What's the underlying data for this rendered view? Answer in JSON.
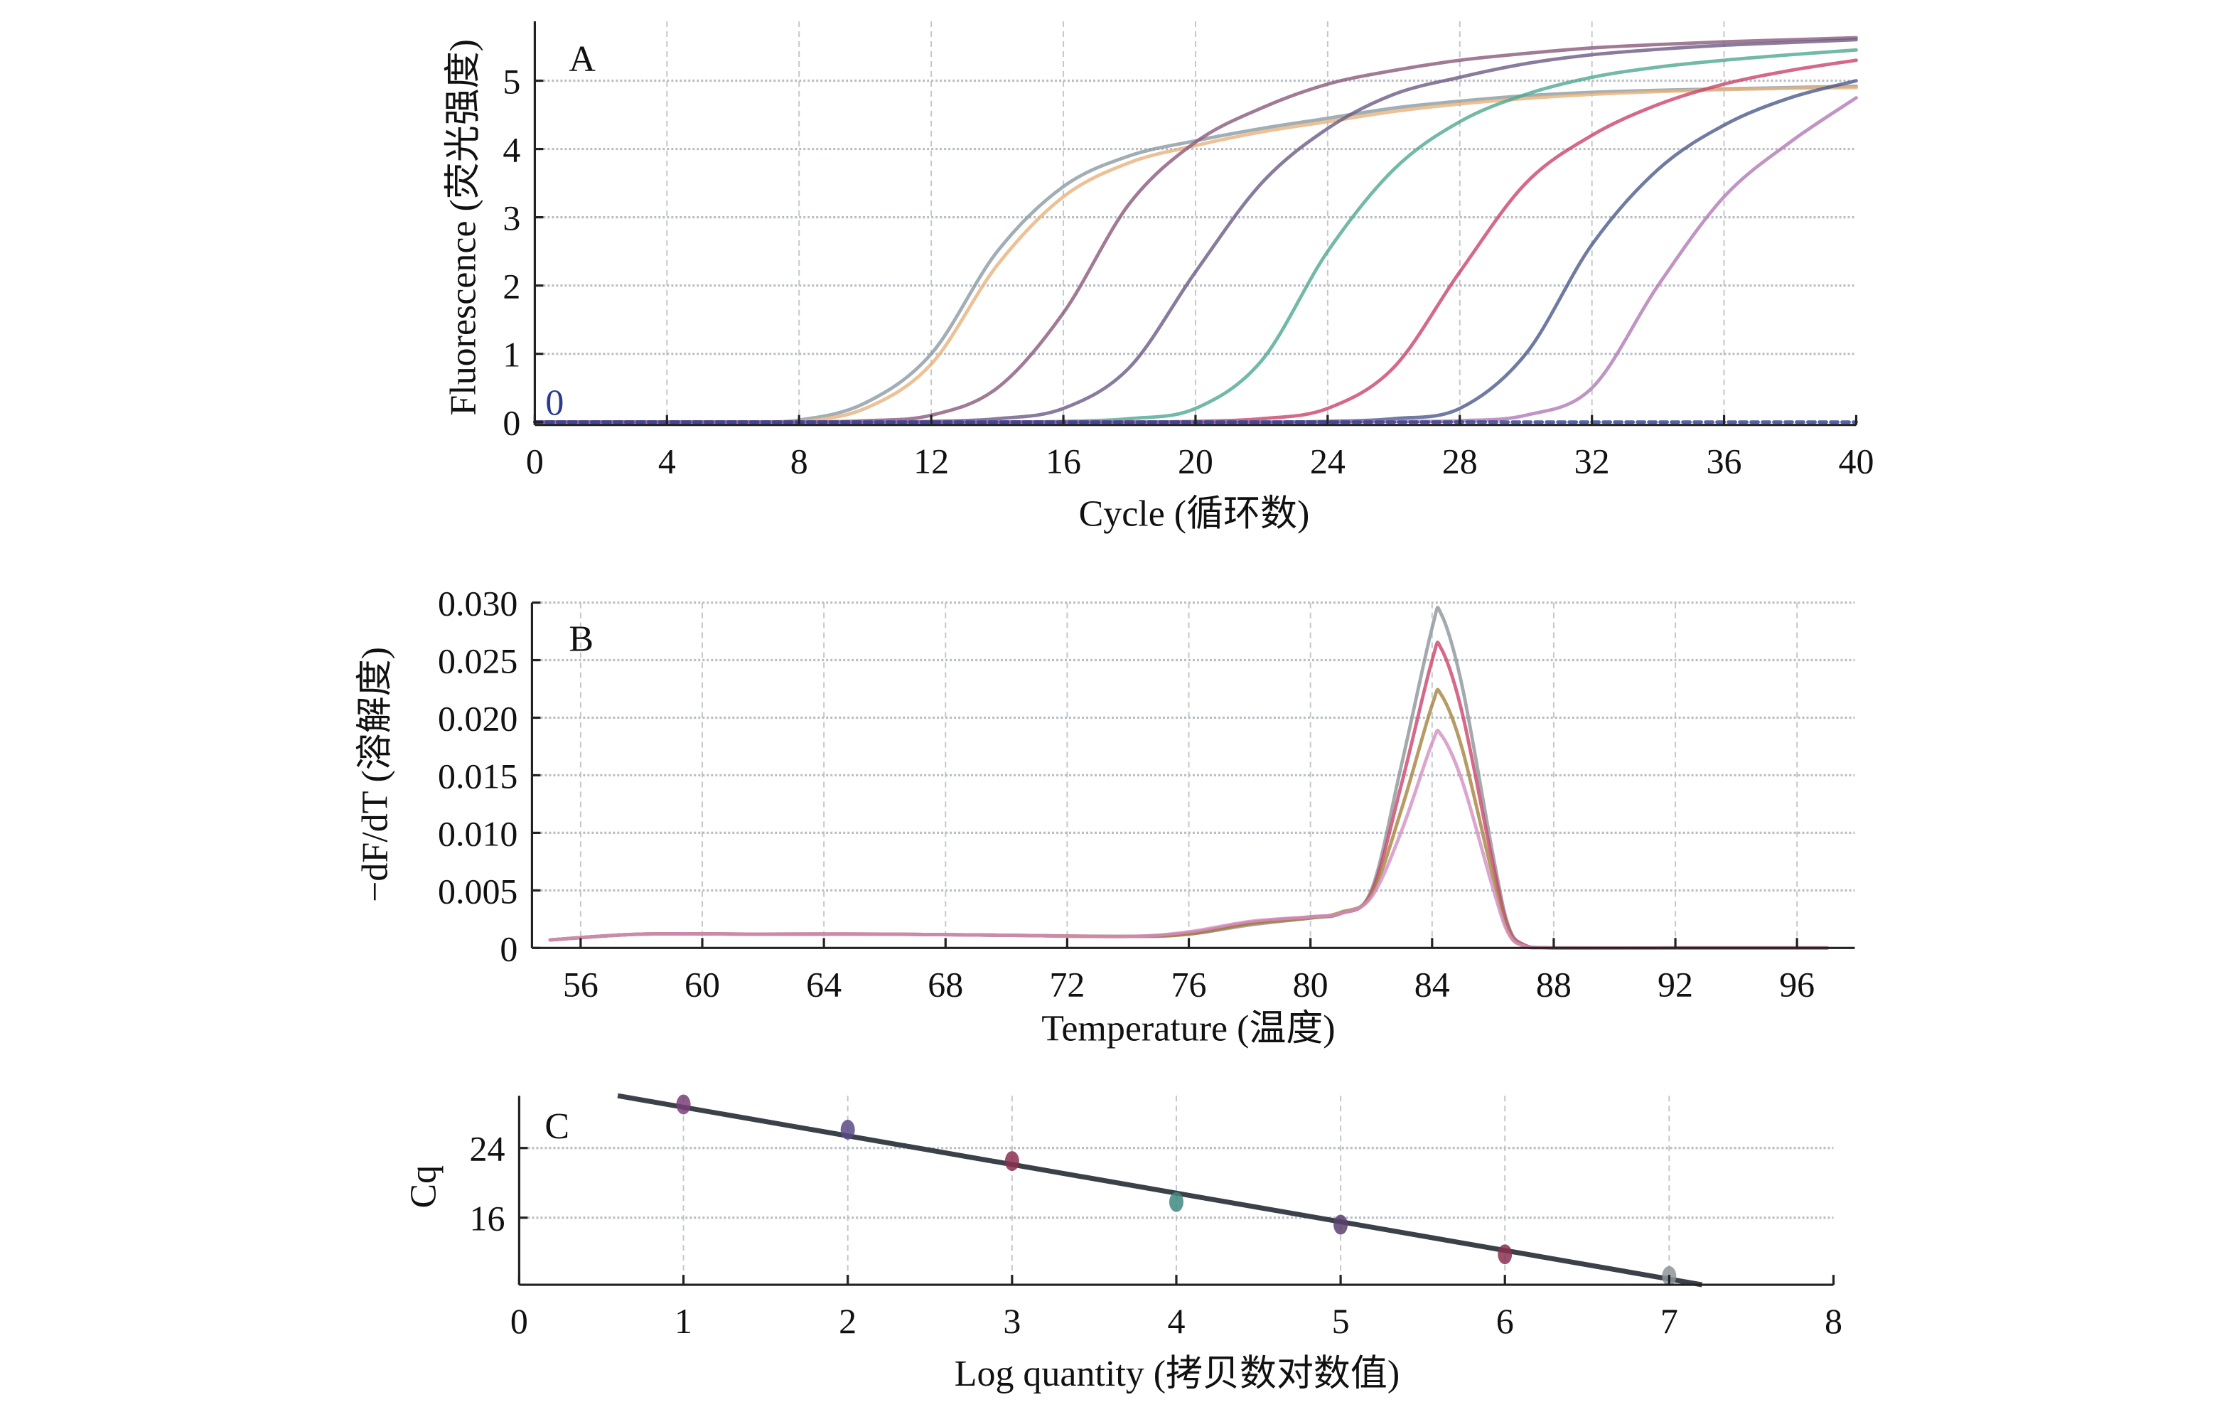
{
  "chart_data": [
    {
      "panel": "A",
      "type": "line",
      "xlabel": "Cycle (循环数)",
      "ylabel": "Fluorescence (荧光强度)",
      "xlim": [
        0,
        40
      ],
      "ylim": [
        0,
        5.87
      ],
      "xticks": [
        "0",
        "4",
        "8",
        "12",
        "16",
        "20",
        "24",
        "28",
        "32",
        "36",
        "40"
      ],
      "yticks": [
        "0",
        "1",
        "2",
        "3",
        "4",
        "5"
      ],
      "grid": true,
      "annotation": "0",
      "annotation_color": "#2b3a8f",
      "x": [
        0,
        2,
        4,
        6,
        8,
        10,
        12,
        14,
        16,
        18,
        20,
        22,
        24,
        26,
        28,
        30,
        32,
        34,
        36,
        38,
        40
      ],
      "series": [
        {
          "color": "#8a9aa3",
          "values": [
            0,
            0,
            0,
            0,
            0.03,
            0.28,
            1.0,
            2.5,
            3.45,
            3.9,
            4.12,
            4.3,
            4.45,
            4.6,
            4.7,
            4.78,
            4.83,
            4.86,
            4.88,
            4.9,
            4.92
          ]
        },
        {
          "color": "#e7b27a",
          "values": [
            0,
            0,
            0,
            0,
            0.01,
            0.2,
            0.85,
            2.3,
            3.3,
            3.8,
            4.05,
            4.25,
            4.4,
            4.55,
            4.66,
            4.74,
            4.8,
            4.84,
            4.87,
            4.89,
            4.9
          ]
        },
        {
          "color": "#8a5a7a",
          "values": [
            0,
            0,
            0,
            0,
            0,
            0.02,
            0.1,
            0.5,
            1.6,
            3.2,
            4.1,
            4.6,
            4.95,
            5.15,
            5.3,
            5.4,
            5.48,
            5.53,
            5.57,
            5.6,
            5.63
          ]
        },
        {
          "color": "#6b5a86",
          "values": [
            0,
            0,
            0,
            0,
            0,
            0,
            0.01,
            0.05,
            0.2,
            0.8,
            2.2,
            3.5,
            4.3,
            4.8,
            5.05,
            5.25,
            5.38,
            5.46,
            5.52,
            5.56,
            5.6
          ]
        },
        {
          "color": "#4fa892",
          "values": [
            0,
            0,
            0,
            0,
            0,
            0,
            0,
            0,
            0.01,
            0.05,
            0.2,
            0.9,
            2.5,
            3.7,
            4.4,
            4.8,
            5.05,
            5.2,
            5.3,
            5.38,
            5.45
          ]
        },
        {
          "color": "#c9446a",
          "values": [
            0,
            0,
            0,
            0,
            0,
            0,
            0,
            0,
            0,
            0,
            0.01,
            0.05,
            0.2,
            0.8,
            2.2,
            3.5,
            4.2,
            4.65,
            4.95,
            5.15,
            5.3
          ]
        },
        {
          "color": "#4b5a8a",
          "values": [
            0,
            0,
            0,
            0,
            0,
            0,
            0,
            0,
            0,
            0,
            0,
            0,
            0.01,
            0.05,
            0.2,
            1.0,
            2.6,
            3.7,
            4.35,
            4.75,
            5.0
          ]
        },
        {
          "color": "#b07ab5",
          "values": [
            0,
            0,
            0,
            0,
            0,
            0,
            0,
            0,
            0,
            0,
            0,
            0,
            0,
            0.01,
            0.02,
            0.1,
            0.5,
            2.0,
            3.3,
            4.1,
            4.75
          ]
        },
        {
          "color": "#2b3a8f",
          "dashed": true,
          "values": [
            0,
            0,
            0,
            0,
            0,
            0,
            0,
            0,
            0,
            0,
            0,
            0,
            0,
            0,
            0,
            0,
            0,
            0,
            0,
            0,
            0
          ]
        }
      ]
    },
    {
      "panel": "B",
      "type": "line",
      "xlabel": "Temperature (温度)",
      "ylabel": "−dF/dT (溶解度)",
      "xlim": [
        54.4,
        97.9
      ],
      "ylim": [
        0,
        0.03
      ],
      "xticks": [
        "56",
        "60",
        "64",
        "68",
        "72",
        "76",
        "80",
        "84",
        "88",
        "92",
        "96"
      ],
      "yticks": [
        "0",
        "0.005",
        "0.010",
        "0.015",
        "0.020",
        "0.025",
        "0.030"
      ],
      "grid": true,
      "x": [
        55,
        58,
        62,
        66,
        70,
        74,
        76,
        78,
        80,
        81,
        82,
        83,
        84,
        84.3,
        85,
        86,
        86.5,
        87,
        88,
        92,
        97
      ],
      "series": [
        {
          "color": "#8d9499",
          "values": [
            0.0007,
            0.0012,
            0.0012,
            0.0012,
            0.0011,
            0.001,
            0.0012,
            0.002,
            0.0026,
            0.003,
            0.005,
            0.016,
            0.0278,
            0.029,
            0.0226,
            0.0081,
            0.002,
            0.0003,
            0,
            0,
            0
          ]
        },
        {
          "color": "#c9446a",
          "values": [
            0.0007,
            0.0012,
            0.0012,
            0.0012,
            0.0011,
            0.001,
            0.0013,
            0.0022,
            0.0027,
            0.003,
            0.0048,
            0.0143,
            0.025,
            0.026,
            0.0203,
            0.0073,
            0.0018,
            0.0003,
            0,
            0,
            0
          ]
        },
        {
          "color": "#a4823f",
          "values": [
            0.0007,
            0.0012,
            0.0012,
            0.0012,
            0.0011,
            0.001,
            0.0012,
            0.0021,
            0.0026,
            0.0031,
            0.0046,
            0.0121,
            0.0211,
            0.022,
            0.0172,
            0.0062,
            0.0015,
            0.0002,
            0,
            0,
            0
          ]
        },
        {
          "color": "#d28fc0",
          "values": [
            0.0007,
            0.0012,
            0.0012,
            0.0012,
            0.0011,
            0.001,
            0.0014,
            0.0023,
            0.0027,
            0.003,
            0.0044,
            0.0102,
            0.0178,
            0.0185,
            0.0144,
            0.0052,
            0.0013,
            0.0002,
            0,
            0,
            0
          ]
        }
      ]
    },
    {
      "panel": "C",
      "type": "scatter",
      "xlabel": "Log quantity (拷贝数对数值)",
      "ylabel": "Cq",
      "xlim": [
        0,
        8
      ],
      "ylim": [
        8.3,
        30
      ],
      "xticks": [
        "0",
        "1",
        "2",
        "3",
        "4",
        "5",
        "6",
        "7",
        "8"
      ],
      "yticks": [
        "16",
        "24"
      ],
      "grid": true,
      "points": [
        {
          "x": 1,
          "y": 29.0,
          "color": "#7a3f78"
        },
        {
          "x": 2,
          "y": 26.1,
          "color": "#5b4a86"
        },
        {
          "x": 3,
          "y": 22.5,
          "color": "#8a3050"
        },
        {
          "x": 4,
          "y": 17.8,
          "color": "#3f8a80"
        },
        {
          "x": 5,
          "y": 15.2,
          "color": "#5a3f70"
        },
        {
          "x": 6,
          "y": 11.8,
          "color": "#8a3050"
        },
        {
          "x": 7,
          "y": 9.3,
          "color": "#8d9499"
        }
      ],
      "fit_line": {
        "x": [
          0.6,
          7.2
        ],
        "y": [
          30.0,
          8.3
        ],
        "color": "#3a4148"
      }
    }
  ]
}
